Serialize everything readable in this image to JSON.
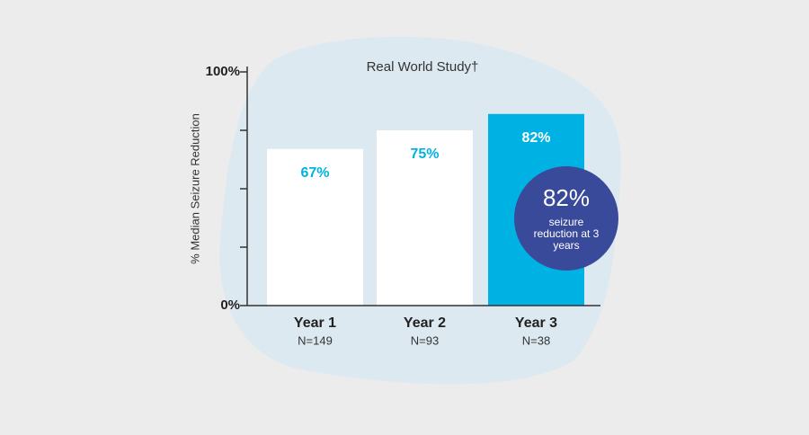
{
  "chart_data": {
    "type": "bar",
    "title": "Real World Study†",
    "y_label": "% Median Seizure Reduction",
    "categories": [
      "Year 1",
      "Year 2",
      "Year 3"
    ],
    "category_notes": [
      "N=149",
      "N=93",
      "N=38"
    ],
    "values": [
      67,
      75,
      82
    ],
    "value_labels": [
      "67%",
      "75%",
      "82%"
    ],
    "colors": [
      "#ffffff",
      "#ffffff",
      "#00b2e3"
    ],
    "label_colors": [
      "#00b2e3",
      "#00b2e3",
      "#ffffff"
    ],
    "ylim": [
      0,
      100
    ],
    "yticks": [
      {
        "value": 0,
        "label": "0%"
      },
      {
        "value": 25,
        "label": null
      },
      {
        "value": 50,
        "label": null
      },
      {
        "value": 75,
        "label": null
      },
      {
        "value": 100,
        "label": "100%"
      }
    ],
    "callout": {
      "label": "82%",
      "lines": [
        "seizure",
        "reduction at 3",
        "years"
      ],
      "color": "#3a4a9a"
    }
  }
}
